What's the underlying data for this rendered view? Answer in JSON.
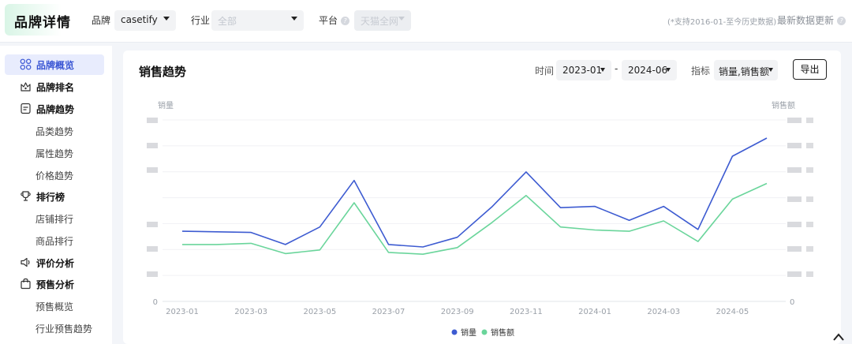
{
  "header": {
    "logo_text": "品牌详情",
    "brand_label": "品牌",
    "brand_value": "casetify",
    "industry_label": "行业",
    "industry_placeholder": "全部",
    "platform_label": "平台",
    "platform_value": "天猫全网",
    "note": "(*支持2016-01-至今历史数据)",
    "update_label": "最新数据更新"
  },
  "sidebar": {
    "items": [
      {
        "label": "品牌概览",
        "icon": "grid-icon",
        "level": 1,
        "active": true
      },
      {
        "label": "品牌排名",
        "icon": "crown-icon",
        "level": 1
      },
      {
        "label": "品牌趋势",
        "icon": "doc-icon",
        "level": 1
      },
      {
        "label": "品类趋势",
        "level": 2
      },
      {
        "label": "属性趋势",
        "level": 2
      },
      {
        "label": "价格趋势",
        "level": 2
      },
      {
        "label": "排行榜",
        "icon": "trophy-icon",
        "level": 1
      },
      {
        "label": "店铺排行",
        "level": 2
      },
      {
        "label": "商品排行",
        "level": 2
      },
      {
        "label": "评价分析",
        "icon": "speaker-icon",
        "level": 1
      },
      {
        "label": "预售分析",
        "icon": "bag-icon",
        "level": 1
      },
      {
        "label": "预售概览",
        "level": 2
      },
      {
        "label": "行业预售趋势",
        "level": 2
      }
    ]
  },
  "panel": {
    "title": "销售趋势",
    "time_label": "时间",
    "start": "2023-01",
    "dash": "-",
    "end": "2024-06",
    "metric_label": "指标",
    "metric_value": "销量,销售额",
    "export_label": "导出"
  },
  "chart_data": {
    "type": "line",
    "x": [
      "2023-01",
      "2023-02",
      "2023-03",
      "2023-04",
      "2023-05",
      "2023-06",
      "2023-07",
      "2023-08",
      "2023-09",
      "2023-10",
      "2023-11",
      "2023-12",
      "2024-01",
      "2024-02",
      "2024-03",
      "2024-04",
      "2024-05",
      "2024-06"
    ],
    "x_tick_labels": [
      "2023-01",
      "2023-03",
      "2023-05",
      "2023-07",
      "2023-09",
      "2023-11",
      "2024-01",
      "2024-03",
      "2024-05"
    ],
    "ylabel_left": "销量",
    "ylabel_right": "销售额",
    "y_zero_label": "0",
    "y_values_hidden": true,
    "grid": true,
    "legend_position": "bottom",
    "series": [
      {
        "name": "销量",
        "color": "#3d5bd1",
        "axis": "left",
        "values": [
          0.58,
          0.575,
          0.57,
          0.47,
          0.615,
          1.0,
          0.47,
          0.45,
          0.53,
          0.78,
          1.07,
          0.775,
          0.785,
          0.67,
          0.785,
          0.595,
          1.2,
          1.35
        ]
      },
      {
        "name": "销售额",
        "color": "#6ad59b",
        "axis": "right",
        "values": [
          0.47,
          0.47,
          0.48,
          0.395,
          0.425,
          0.815,
          0.405,
          0.39,
          0.445,
          0.65,
          0.875,
          0.615,
          0.59,
          0.58,
          0.665,
          0.495,
          0.845,
          0.975
        ]
      }
    ],
    "y_min": 0,
    "y_max_left": 1.5,
    "y_max_right": 1.5
  },
  "colors": {
    "accent": "#3a56d4",
    "series1": "#3d5bd1",
    "series2": "#6ad59b"
  }
}
